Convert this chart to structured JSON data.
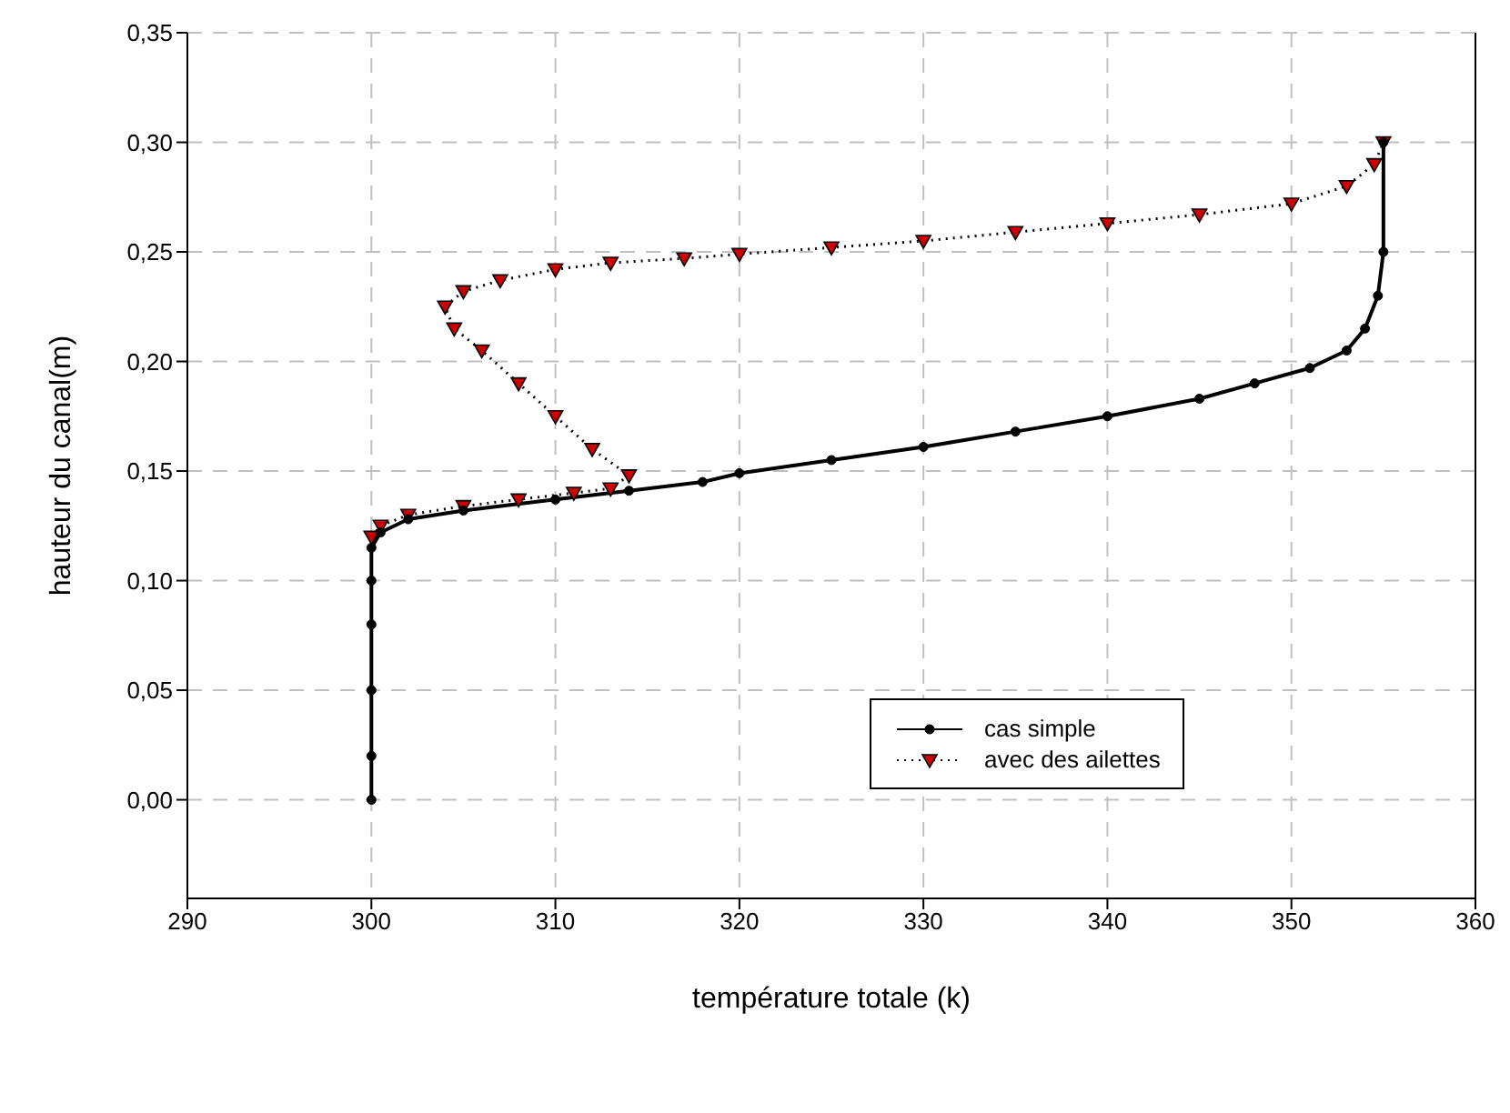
{
  "chart_data": {
    "type": "line",
    "xlabel": "température totale (k)",
    "ylabel": "hauteur du canal(m)",
    "xlim": [
      290,
      360
    ],
    "xticks": [
      290,
      300,
      310,
      320,
      330,
      340,
      350,
      360
    ],
    "ylim": [
      -0.045,
      0.35
    ],
    "yticks": [
      {
        "value": 0,
        "label": "0,00"
      },
      {
        "value": 0.05,
        "label": "0,05"
      },
      {
        "value": 0.1,
        "label": "0,10"
      },
      {
        "value": 0.15,
        "label": "0,15"
      },
      {
        "value": 0.2,
        "label": "0,20"
      },
      {
        "value": 0.25,
        "label": "0,25"
      },
      {
        "value": 0.3,
        "label": "0,30"
      },
      {
        "value": 0.35,
        "label": "0,35"
      }
    ],
    "grid": true,
    "legend": "bottom right",
    "series": [
      {
        "name": "cas simple",
        "color": "#000000",
        "marker": "circle",
        "line_style": "solid",
        "x": [
          300,
          300,
          300,
          300,
          300,
          300,
          300.5,
          302,
          305,
          310,
          314,
          318,
          320,
          325,
          330,
          335,
          340,
          345,
          348,
          351,
          353,
          354,
          354.7,
          355,
          355
        ],
        "values": [
          0,
          0.02,
          0.05,
          0.08,
          0.1,
          0.115,
          0.122,
          0.128,
          0.132,
          0.137,
          0.141,
          0.145,
          0.149,
          0.155,
          0.161,
          0.168,
          0.175,
          0.183,
          0.19,
          0.197,
          0.205,
          0.215,
          0.23,
          0.25,
          0.3
        ]
      },
      {
        "name": "avec des ailettes",
        "color": "#cc0000",
        "marker": "triangle",
        "line_style": "dotted",
        "x": [
          300,
          300.5,
          302,
          305,
          308,
          311,
          313,
          314,
          312,
          310,
          308,
          306,
          304.5,
          304,
          305,
          307,
          310,
          313,
          317,
          320,
          325,
          330,
          335,
          340,
          345,
          350,
          353,
          354.5,
          355
        ],
        "values": [
          0.12,
          0.125,
          0.13,
          0.134,
          0.137,
          0.14,
          0.142,
          0.148,
          0.16,
          0.175,
          0.19,
          0.205,
          0.215,
          0.225,
          0.232,
          0.237,
          0.242,
          0.245,
          0.247,
          0.249,
          0.252,
          0.255,
          0.259,
          0.263,
          0.267,
          0.272,
          0.28,
          0.29,
          0.3
        ]
      }
    ]
  }
}
